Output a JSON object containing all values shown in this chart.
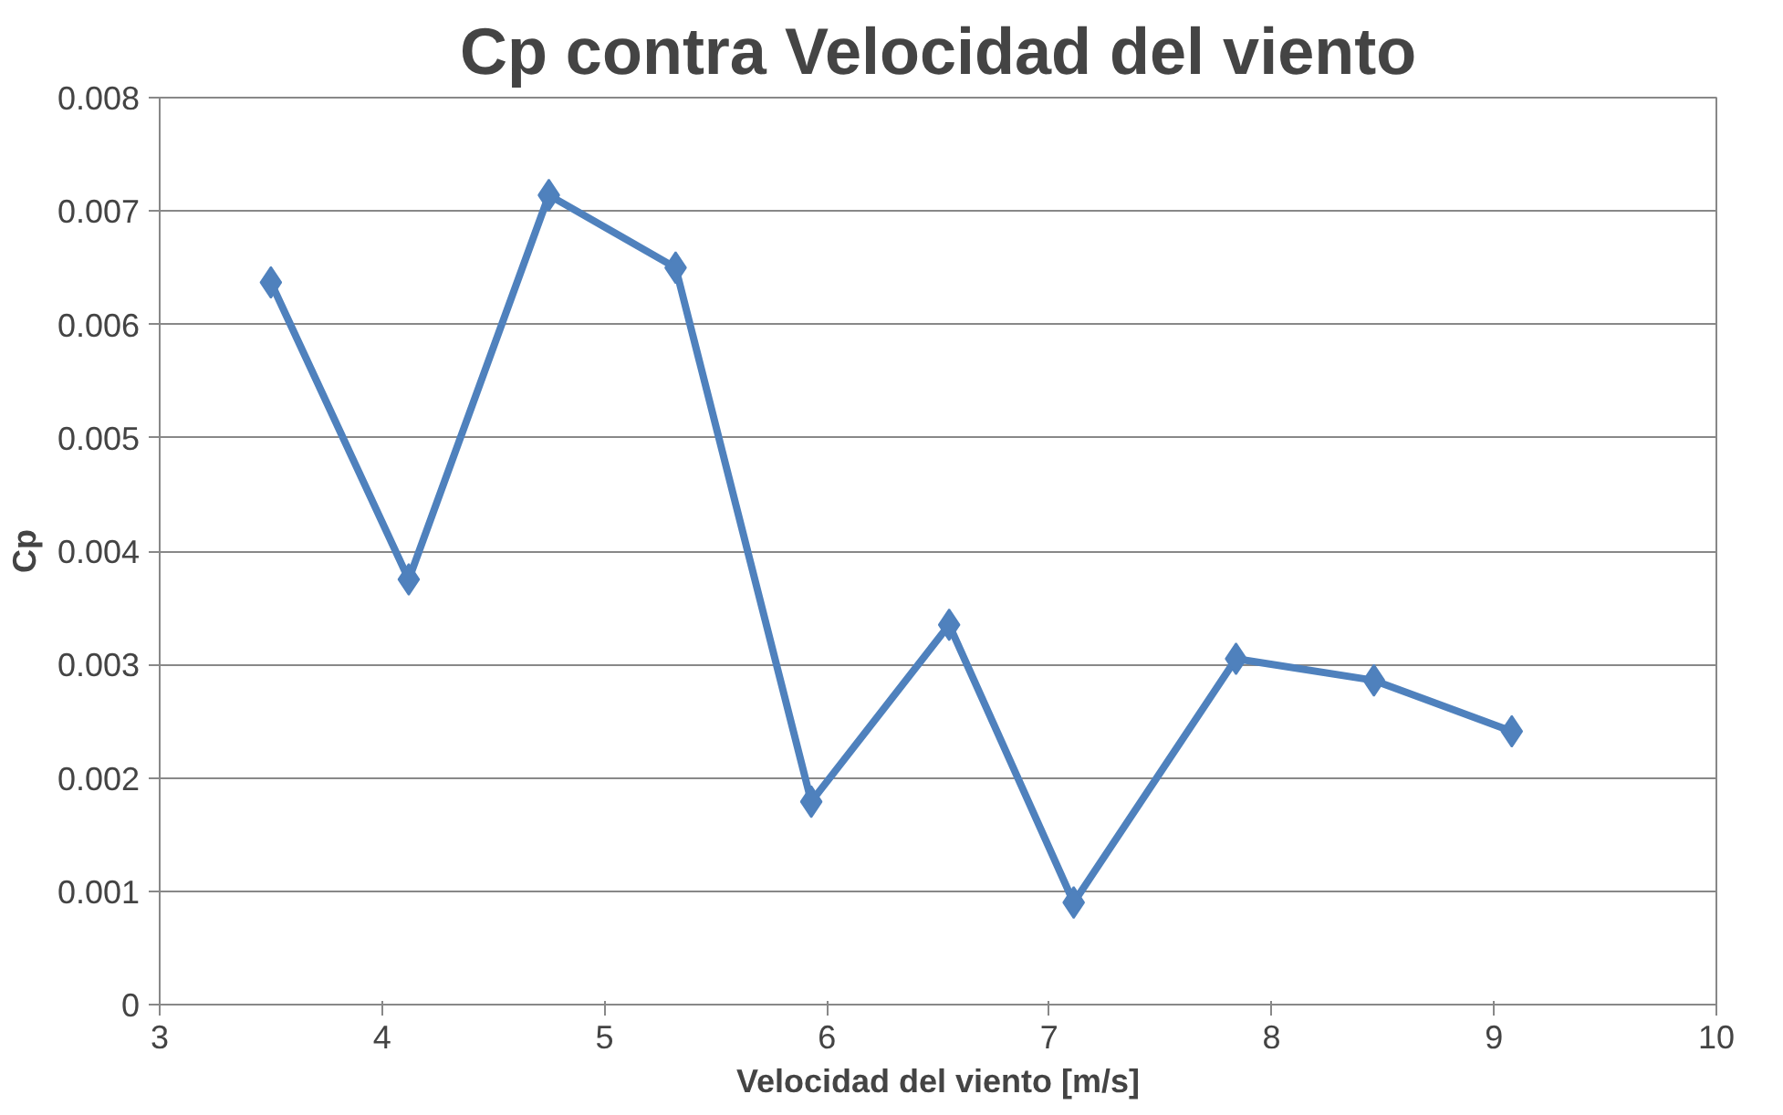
{
  "chart_data": {
    "type": "line",
    "title": "Cp contra Velocidad del viento",
    "xlabel": "Velocidad del viento [m/s]",
    "ylabel": "Cp",
    "x": [
      3.5,
      4.12,
      4.75,
      5.32,
      5.93,
      6.55,
      7.11,
      7.84,
      8.46,
      9.08
    ],
    "series": [
      {
        "color": "#4f81bd",
        "values": [
          0.00637,
          0.00375,
          0.00714,
          0.0065,
          0.00179,
          0.00335,
          0.0009,
          0.00305,
          0.00286,
          0.00241
        ]
      }
    ],
    "xlim": [
      3,
      10
    ],
    "xticks": [
      3,
      4,
      5,
      6,
      7,
      8,
      9,
      10
    ],
    "ylim": [
      0,
      0.008
    ],
    "yticks": [
      0,
      0.001,
      0.002,
      0.003,
      0.004,
      0.005,
      0.006,
      0.007,
      0.008
    ],
    "grid": "y",
    "marker": "diamond",
    "line_style": "solid"
  }
}
